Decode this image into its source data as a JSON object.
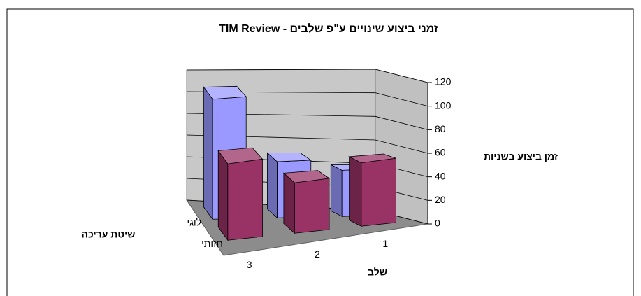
{
  "chart_data": {
    "type": "bar3d",
    "title": "זמני ביצוע שינויים ע\"פ שלבים - TIM Review",
    "y_label": "זמן ביצוע בשניות",
    "x_label": "שלב",
    "series_axis_label": "שיטת עריכה",
    "categories": [
      "3",
      "2",
      "1"
    ],
    "series": [
      {
        "name": "לוגי",
        "color": "#9999ff",
        "values": [
          110,
          50,
          40
        ]
      },
      {
        "name": "חזותי",
        "color": "#993366",
        "values": [
          70,
          45,
          55
        ]
      }
    ],
    "ylim": [
      0,
      120
    ],
    "yticks": [
      0,
      20,
      40,
      60,
      80,
      100,
      120
    ],
    "grid": true
  }
}
